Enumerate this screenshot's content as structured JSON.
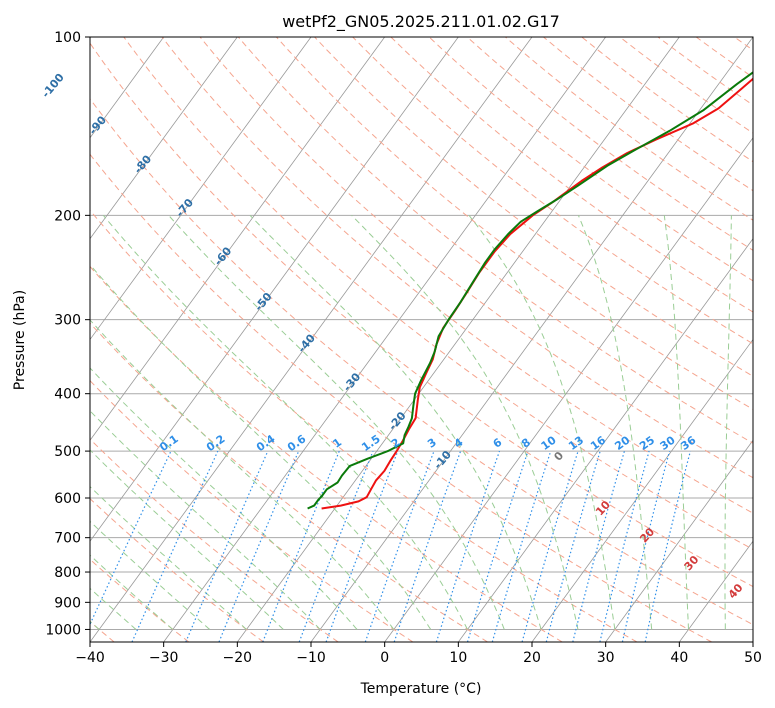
{
  "chart_data": {
    "type": "line",
    "chart_kind": "skew-t log-p",
    "title": "wetPf2_GN05.2025.211.01.02.G17",
    "xlabel": "Temperature (°C)",
    "ylabel": "Pressure (hPa)",
    "xlim": [
      -40,
      50
    ],
    "ylim": [
      1050,
      100
    ],
    "y_scale": "log",
    "x_ticks": [
      -40,
      -30,
      -20,
      -10,
      0,
      10,
      20,
      30,
      40,
      50
    ],
    "y_ticks": [
      100,
      200,
      300,
      400,
      500,
      600,
      700,
      800,
      900,
      1000
    ],
    "grid": true,
    "dry_adiabat_labels": [
      "-100",
      "-90",
      "-80",
      "-70",
      "-60",
      "-50",
      "-40",
      "-30",
      "-20",
      "-10"
    ],
    "moist_adiabat_labels": [
      "0",
      "10",
      "20",
      "30",
      "40"
    ],
    "mixing_ratio_labels": [
      "0.1",
      "0.2",
      "0.4",
      "0.6",
      "1",
      "1.5",
      "2",
      "3",
      "4",
      "6",
      "8",
      "10",
      "13",
      "16",
      "20",
      "25",
      "30",
      "36"
    ],
    "colors": {
      "temperature": "#ee1111",
      "dewpoint": "#0a7a0a",
      "isotherm": "#999999",
      "isobar": "#aaaaaa",
      "dry_adiabat": "#f5a58f",
      "moist_adiabat": "#9acd95",
      "mixing_ratio": "#2f8fe8"
    },
    "series": [
      {
        "key": "temperature",
        "points": [
          [
            -21.8,
            625
          ],
          [
            -19.5,
            618
          ],
          [
            -17.5,
            608
          ],
          [
            -16.8,
            598
          ],
          [
            -17.0,
            580
          ],
          [
            -17.2,
            560
          ],
          [
            -17.0,
            540
          ],
          [
            -17.2,
            520
          ],
          [
            -17.3,
            500
          ],
          [
            -17.5,
            480
          ],
          [
            -17.8,
            460
          ],
          [
            -18.0,
            440
          ],
          [
            -19.5,
            410
          ],
          [
            -20.5,
            390
          ],
          [
            -21.0,
            370
          ],
          [
            -21.5,
            350
          ],
          [
            -22.5,
            330
          ],
          [
            -23.2,
            310
          ],
          [
            -23.3,
            290
          ],
          [
            -23.5,
            270
          ],
          [
            -23.8,
            250
          ],
          [
            -23.8,
            230
          ],
          [
            -23.4,
            215
          ],
          [
            -22.2,
            200
          ],
          [
            -20.8,
            190
          ],
          [
            -20.0,
            183
          ],
          [
            -19.0,
            175
          ],
          [
            -17.5,
            166
          ],
          [
            -15.6,
            157
          ],
          [
            -13.0,
            149
          ],
          [
            -9.6,
            140
          ],
          [
            -7.6,
            132
          ],
          [
            -6.4,
            122
          ],
          [
            -5.1,
            112
          ],
          [
            -3.9,
            100
          ]
        ]
      },
      {
        "key": "dewpoint",
        "points": [
          [
            -23.7,
            625
          ],
          [
            -23.1,
            618
          ],
          [
            -23.1,
            605
          ],
          [
            -23.0,
            595
          ],
          [
            -23.0,
            580
          ],
          [
            -22.2,
            565
          ],
          [
            -22.3,
            550
          ],
          [
            -22.2,
            530
          ],
          [
            -20.5,
            515
          ],
          [
            -18.5,
            500
          ],
          [
            -17.2,
            485
          ],
          [
            -17.8,
            470
          ],
          [
            -18.1,
            455
          ],
          [
            -18.5,
            440
          ],
          [
            -19.5,
            420
          ],
          [
            -20.5,
            400
          ],
          [
            -21.0,
            380
          ],
          [
            -21.5,
            355
          ],
          [
            -22.0,
            340
          ],
          [
            -23.0,
            320
          ],
          [
            -23.3,
            300
          ],
          [
            -23.4,
            280
          ],
          [
            -23.7,
            260
          ],
          [
            -24.0,
            240
          ],
          [
            -24.0,
            228
          ],
          [
            -23.7,
            215
          ],
          [
            -23.2,
            205
          ],
          [
            -22.0,
            197
          ],
          [
            -20.5,
            188
          ],
          [
            -19.0,
            178
          ],
          [
            -17.0,
            165
          ],
          [
            -14.8,
            155
          ],
          [
            -12.0,
            144
          ],
          [
            -9.5,
            133
          ],
          [
            -7.5,
            120
          ],
          [
            -4.9,
            107
          ],
          [
            -3.9,
            100
          ]
        ]
      }
    ]
  }
}
